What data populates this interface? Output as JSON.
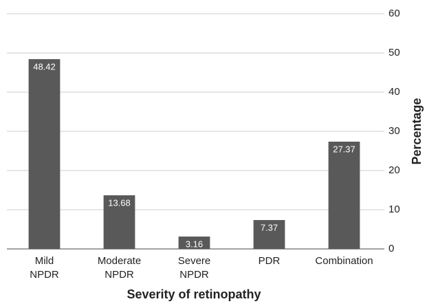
{
  "chart_data": {
    "type": "bar",
    "categories": [
      [
        "Mild",
        "NPDR"
      ],
      [
        "Moderate",
        "NPDR"
      ],
      [
        "Severe",
        "NPDR"
      ],
      [
        "PDR"
      ],
      [
        "Combination"
      ]
    ],
    "values": [
      48.42,
      13.68,
      3.16,
      7.37,
      27.37
    ],
    "color": "#595959",
    "ylim": [
      0,
      60
    ],
    "yticks": [
      0,
      10,
      20,
      30,
      40,
      50,
      60
    ],
    "grid": true,
    "y_axis_side": "right",
    "ylabel": "Percentage",
    "xlabel": "Severity of retinopathy"
  }
}
